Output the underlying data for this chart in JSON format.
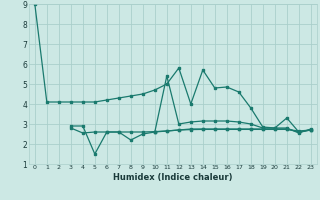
{
  "xlabel": "Humidex (Indice chaleur)",
  "x": [
    0,
    1,
    2,
    3,
    4,
    5,
    6,
    7,
    8,
    9,
    10,
    11,
    12,
    13,
    14,
    15,
    16,
    17,
    18,
    19,
    20,
    21,
    22,
    23
  ],
  "series1": [
    9.0,
    4.1,
    4.1,
    4.1,
    4.1,
    4.1,
    4.2,
    4.3,
    4.4,
    4.5,
    4.7,
    5.0,
    5.8,
    4.0,
    5.7,
    4.8,
    4.85,
    4.6,
    3.8,
    2.85,
    2.8,
    3.3,
    2.6,
    2.7
  ],
  "series2": [
    null,
    null,
    null,
    2.9,
    2.9,
    1.5,
    2.6,
    2.6,
    2.2,
    2.5,
    2.6,
    5.4,
    3.0,
    3.1,
    3.15,
    3.15,
    3.15,
    3.1,
    3.0,
    2.8,
    2.8,
    2.8,
    2.55,
    2.75
  ],
  "series3": [
    null,
    null,
    null,
    2.8,
    2.55,
    2.6,
    2.6,
    2.6,
    2.6,
    2.6,
    2.62,
    2.65,
    2.7,
    2.75,
    2.75,
    2.75,
    2.75,
    2.75,
    2.75,
    2.75,
    2.75,
    2.75,
    2.6,
    2.7
  ],
  "series4": [
    null,
    null,
    null,
    null,
    null,
    null,
    null,
    null,
    null,
    null,
    2.6,
    2.65,
    2.7,
    2.72,
    2.73,
    2.73,
    2.73,
    2.73,
    2.73,
    2.73,
    2.73,
    2.73,
    2.65,
    2.7
  ],
  "line_color": "#1a7a6e",
  "bg_color": "#cce8e4",
  "grid_color": "#aacfcb",
  "ylim": [
    1,
    9
  ],
  "xlim": [
    -0.5,
    23.5
  ]
}
